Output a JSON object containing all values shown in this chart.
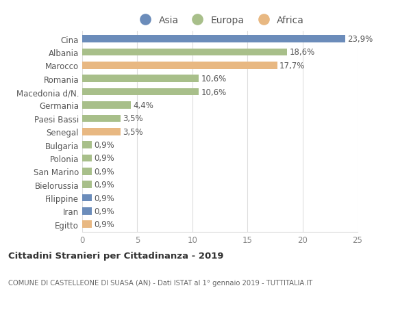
{
  "categories": [
    "Cina",
    "Albania",
    "Marocco",
    "Romania",
    "Macedonia d/N.",
    "Germania",
    "Paesi Bassi",
    "Senegal",
    "Bulgaria",
    "Polonia",
    "San Marino",
    "Bielorussia",
    "Filippine",
    "Iran",
    "Egitto"
  ],
  "values": [
    23.9,
    18.6,
    17.7,
    10.6,
    10.6,
    4.4,
    3.5,
    3.5,
    0.9,
    0.9,
    0.9,
    0.9,
    0.9,
    0.9,
    0.9
  ],
  "labels": [
    "23,9%",
    "18,6%",
    "17,7%",
    "10,6%",
    "10,6%",
    "4,4%",
    "3,5%",
    "3,5%",
    "0,9%",
    "0,9%",
    "0,9%",
    "0,9%",
    "0,9%",
    "0,9%",
    "0,9%"
  ],
  "colors": [
    "#6b8cba",
    "#a8bf8a",
    "#e8b882",
    "#a8bf8a",
    "#a8bf8a",
    "#a8bf8a",
    "#a8bf8a",
    "#e8b882",
    "#a8bf8a",
    "#a8bf8a",
    "#a8bf8a",
    "#a8bf8a",
    "#6b8cba",
    "#6b8cba",
    "#e8b882"
  ],
  "legend_labels": [
    "Asia",
    "Europa",
    "Africa"
  ],
  "legend_colors": [
    "#6b8cba",
    "#a8bf8a",
    "#e8b882"
  ],
  "title_bold": "Cittadini Stranieri per Cittadinanza - 2019",
  "subtitle": "COMUNE DI CASTELLEONE DI SUASA (AN) - Dati ISTAT al 1° gennaio 2019 - TUTTITALIA.IT",
  "xlim": [
    0,
    25
  ],
  "xticks": [
    0,
    5,
    10,
    15,
    20,
    25
  ],
  "background_color": "#ffffff",
  "grid_color": "#dddddd",
  "bar_height": 0.55,
  "label_fontsize": 8.5,
  "tick_fontsize": 8.5,
  "legend_fontsize": 10
}
